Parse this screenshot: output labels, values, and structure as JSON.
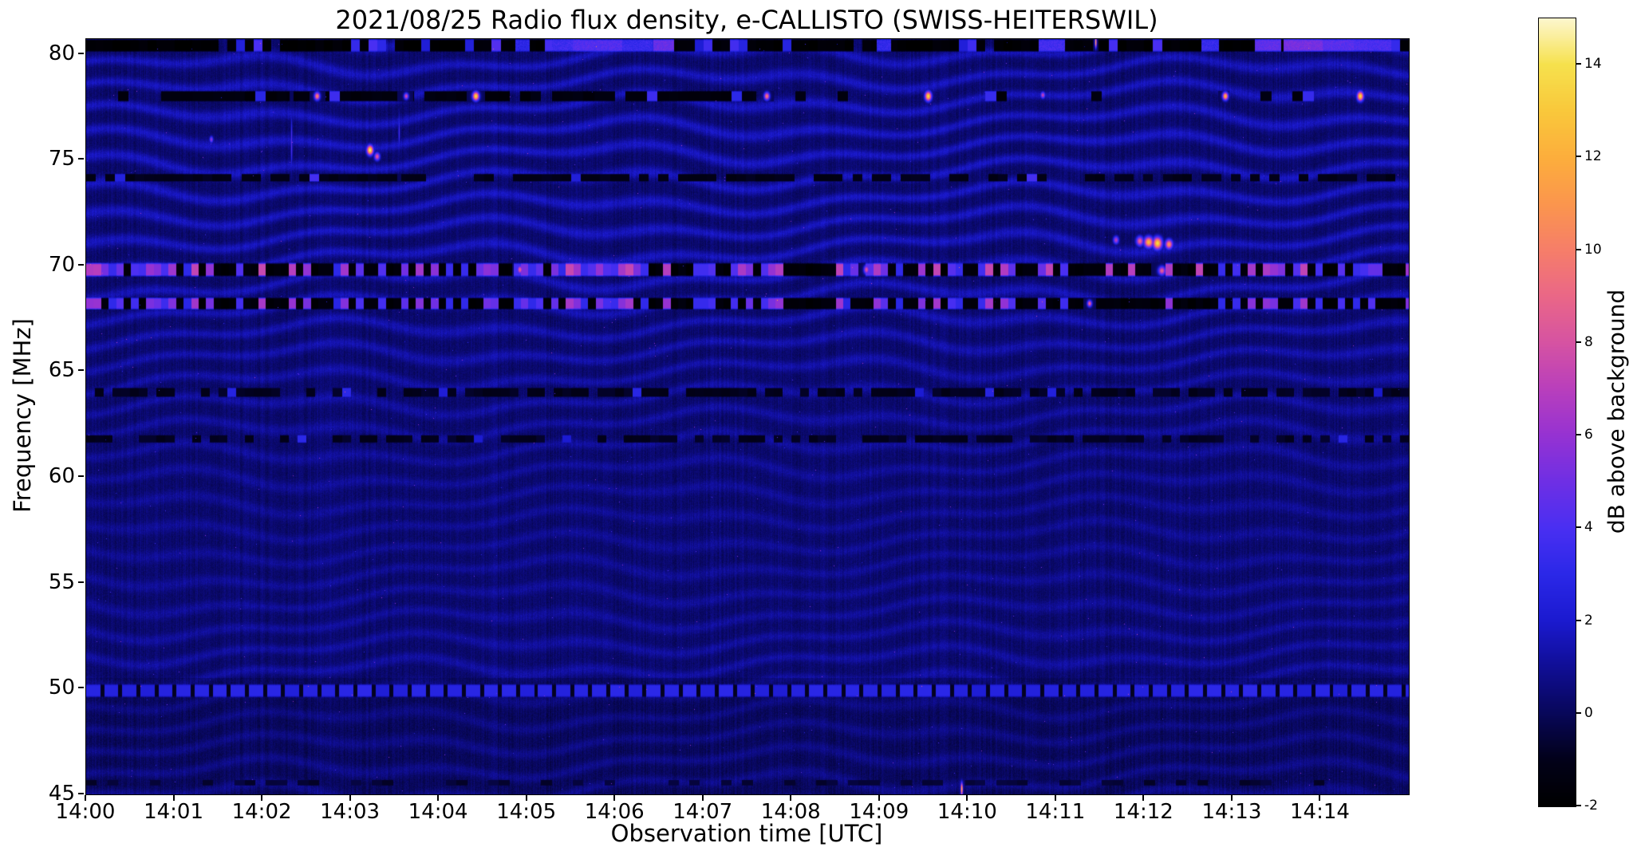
{
  "chart_data": {
    "type": "heatmap",
    "title": "2021/08/25  Radio flux density, e-CALLISTO (SWISS-HEITERSWIL)",
    "xlabel": "Observation time [UTC]",
    "ylabel": "Frequency [MHz]",
    "x_ticks": [
      "14:00",
      "14:01",
      "14:02",
      "14:03",
      "14:04",
      "14:05",
      "14:06",
      "14:07",
      "14:08",
      "14:09",
      "14:10",
      "14:11",
      "14:12",
      "14:13",
      "14:14"
    ],
    "x_tick_minutes": [
      0,
      1,
      2,
      3,
      4,
      5,
      6,
      7,
      8,
      9,
      10,
      11,
      12,
      13,
      14
    ],
    "x_range_minutes": [
      0,
      15
    ],
    "y_ticks": [
      80,
      75,
      70,
      65,
      60,
      55,
      50,
      45
    ],
    "freq_range": [
      45.0,
      80.7
    ],
    "grid": false,
    "colorbar": {
      "label": "dB above background",
      "range": [
        -2,
        15
      ],
      "ticks": [
        14,
        12,
        10,
        8,
        6,
        4,
        2,
        0,
        -2
      ]
    },
    "colormap": {
      "name": "gnuplot2-like",
      "stops": [
        [
          0.0,
          "#000000"
        ],
        [
          0.0588,
          "#02011a"
        ],
        [
          0.1176,
          "#08075a"
        ],
        [
          0.1765,
          "#100e96"
        ],
        [
          0.2353,
          "#1b1ad0"
        ],
        [
          0.2941,
          "#2b28e8"
        ],
        [
          0.3529,
          "#4a2ff2"
        ],
        [
          0.4118,
          "#6f2fe4"
        ],
        [
          0.4706,
          "#9632d2"
        ],
        [
          0.5294,
          "#b93fbc"
        ],
        [
          0.5882,
          "#d653a2"
        ],
        [
          0.6471,
          "#ea6787"
        ],
        [
          0.7059,
          "#f67e69"
        ],
        [
          0.7647,
          "#fb964d"
        ],
        [
          0.8235,
          "#fcae3c"
        ],
        [
          0.8824,
          "#f9c83b"
        ],
        [
          0.9412,
          "#f6e14d"
        ],
        [
          1.0,
          "#fdf7d0"
        ]
      ]
    },
    "background_pattern": {
      "base_low_freq": 0.05,
      "base_high_freq": 0.3,
      "low_high_boundary_mhz": 50.5,
      "fringe_spacing_mhz": 1.15,
      "fringe_amp_high": 1.25,
      "fringe_amp_low": 0.75,
      "noise_amp": 0.5,
      "column_noise_amp": 0.3,
      "speckle_probability": 0.0005,
      "seed": 42
    },
    "bands": [
      {
        "freq": 80.4,
        "half_height": 0.32,
        "style": "dashed",
        "dash_minutes": 0.1,
        "cover": 0.97,
        "bright_fraction": 0.15,
        "bright_value_range": [
          2.2,
          4.5
        ],
        "dark_value": -1.85,
        "seed": 3,
        "patches": [
          {
            "t": 4.95,
            "w": 0.08,
            "v": 3.0
          },
          {
            "t": 5.4,
            "w": 0.12,
            "v": 3.6
          },
          {
            "t": 5.8,
            "w": 0.28,
            "v": 4.2
          },
          {
            "t": 6.2,
            "w": 0.22,
            "v": 3.4
          },
          {
            "t": 6.55,
            "w": 0.12,
            "v": 4.8
          },
          {
            "t": 9.05,
            "w": 0.08,
            "v": 3.2
          },
          {
            "t": 10.95,
            "w": 0.15,
            "v": 3.8
          },
          {
            "t": 12.75,
            "w": 0.1,
            "v": 3.4
          },
          {
            "t": 13.4,
            "w": 0.15,
            "v": 4.6
          },
          {
            "t": 13.8,
            "w": 0.22,
            "v": 5.2
          },
          {
            "t": 14.2,
            "w": 0.18,
            "v": 4.4
          },
          {
            "t": 14.55,
            "w": 0.25,
            "v": 4.0
          }
        ]
      },
      {
        "freq": 78.0,
        "half_height": 0.27,
        "style": "dashed",
        "dash_minutes": 0.12,
        "cover": 0.95,
        "t_range": [
          0.85,
          7.6
        ],
        "outside_factor": 0.25,
        "bright_fraction": 0.04,
        "bright_value_range": [
          2.5,
          4.0
        ],
        "dark_value": -1.5,
        "seed": 11
      },
      {
        "freq": 74.15,
        "half_height": 0.2,
        "style": "dashed",
        "dash_minutes": 0.11,
        "cover": 0.75,
        "bright_fraction": 0.1,
        "bright_value_range": [
          2.0,
          4.0
        ],
        "dark_value": -1.1,
        "seed": 19
      },
      {
        "freq": 69.8,
        "half_height": 0.34,
        "style": "dashed",
        "dash_minutes": 0.085,
        "cover": 1.0,
        "bright_fraction": 0.5,
        "bright_value_range": [
          3.0,
          7.5
        ],
        "dark_value": -1.7,
        "seed": 7
      },
      {
        "freq": 68.2,
        "half_height": 0.3,
        "style": "dashed",
        "dash_minutes": 0.085,
        "cover": 1.0,
        "bright_fraction": 0.42,
        "bright_value_range": [
          2.8,
          6.5
        ],
        "dark_value": -1.7,
        "seed": 7
      },
      {
        "freq": 64.0,
        "half_height": 0.24,
        "style": "dashed",
        "dash_minutes": 0.1,
        "cover": 0.7,
        "bright_fraction": 0.08,
        "bright_value_range": [
          1.8,
          3.2
        ],
        "dark_value": -0.95,
        "seed": 23
      },
      {
        "freq": 61.8,
        "half_height": 0.2,
        "style": "dashed",
        "dash_minutes": 0.1,
        "cover": 0.6,
        "bright_fraction": 0.05,
        "bright_value_range": [
          1.8,
          3.0
        ],
        "dark_value": -0.85,
        "seed": 29
      },
      {
        "freq": 49.9,
        "half_height": 0.33,
        "style": "blocks",
        "block_minutes": 0.16,
        "gap_minutes": 0.045,
        "value_range": [
          2.2,
          3.1
        ],
        "gap_value": -0.9,
        "seed": 31
      },
      {
        "freq": 45.55,
        "half_height": 0.15,
        "style": "dashed",
        "dash_minutes": 0.12,
        "cover": 0.35,
        "bright_fraction": 0.03,
        "bright_value_range": [
          1.5,
          2.5
        ],
        "dark_value": -0.6,
        "seed": 37
      }
    ],
    "spots": [
      {
        "t": 3.22,
        "f": 75.45,
        "wt": 0.035,
        "wf": 0.22,
        "v": 14.6
      },
      {
        "t": 3.3,
        "f": 75.15,
        "wt": 0.03,
        "wf": 0.18,
        "v": 8.5
      },
      {
        "t": 1.42,
        "f": 75.95,
        "wt": 0.02,
        "wf": 0.15,
        "v": 6.0
      },
      {
        "t": 2.62,
        "f": 78.0,
        "wt": 0.03,
        "wf": 0.18,
        "v": 10.5
      },
      {
        "t": 3.63,
        "f": 78.0,
        "wt": 0.025,
        "wf": 0.15,
        "v": 8.0
      },
      {
        "t": 4.42,
        "f": 78.0,
        "wt": 0.035,
        "wf": 0.2,
        "v": 13.8
      },
      {
        "t": 7.72,
        "f": 78.0,
        "wt": 0.03,
        "wf": 0.18,
        "v": 10.0
      },
      {
        "t": 9.55,
        "f": 78.0,
        "wt": 0.035,
        "wf": 0.22,
        "v": 13.9
      },
      {
        "t": 10.85,
        "f": 78.05,
        "wt": 0.025,
        "wf": 0.15,
        "v": 7.5
      },
      {
        "t": 12.92,
        "f": 78.0,
        "wt": 0.03,
        "wf": 0.18,
        "v": 12.5
      },
      {
        "t": 14.45,
        "f": 78.0,
        "wt": 0.035,
        "wf": 0.22,
        "v": 13.9
      },
      {
        "t": 11.68,
        "f": 71.2,
        "wt": 0.03,
        "wf": 0.18,
        "v": 7.0
      },
      {
        "t": 11.95,
        "f": 71.15,
        "wt": 0.04,
        "wf": 0.22,
        "v": 9.0
      },
      {
        "t": 12.05,
        "f": 71.1,
        "wt": 0.05,
        "wf": 0.25,
        "v": 12.5
      },
      {
        "t": 12.15,
        "f": 71.05,
        "wt": 0.05,
        "wf": 0.28,
        "v": 13.8
      },
      {
        "t": 12.28,
        "f": 71.0,
        "wt": 0.04,
        "wf": 0.22,
        "v": 11.0
      },
      {
        "t": 4.92,
        "f": 69.8,
        "wt": 0.03,
        "wf": 0.2,
        "v": 8.8
      },
      {
        "t": 8.85,
        "f": 69.8,
        "wt": 0.03,
        "wf": 0.2,
        "v": 8.3
      },
      {
        "t": 12.2,
        "f": 69.75,
        "wt": 0.04,
        "wf": 0.2,
        "v": 8.8
      },
      {
        "t": 11.38,
        "f": 68.2,
        "wt": 0.025,
        "wf": 0.15,
        "v": 9.0
      },
      {
        "t": 9.93,
        "f": 45.25,
        "wt": 0.012,
        "wf": 0.3,
        "v": 12.5
      },
      {
        "t": 11.45,
        "f": 80.55,
        "wt": 0.01,
        "wf": 0.25,
        "v": 12.0
      },
      {
        "t": 2.33,
        "f": 75.8,
        "wt": 0.008,
        "wf": 1.2,
        "v": 4.5
      },
      {
        "t": 3.55,
        "f": 76.3,
        "wt": 0.008,
        "wf": 0.8,
        "v": 4.0
      }
    ]
  }
}
